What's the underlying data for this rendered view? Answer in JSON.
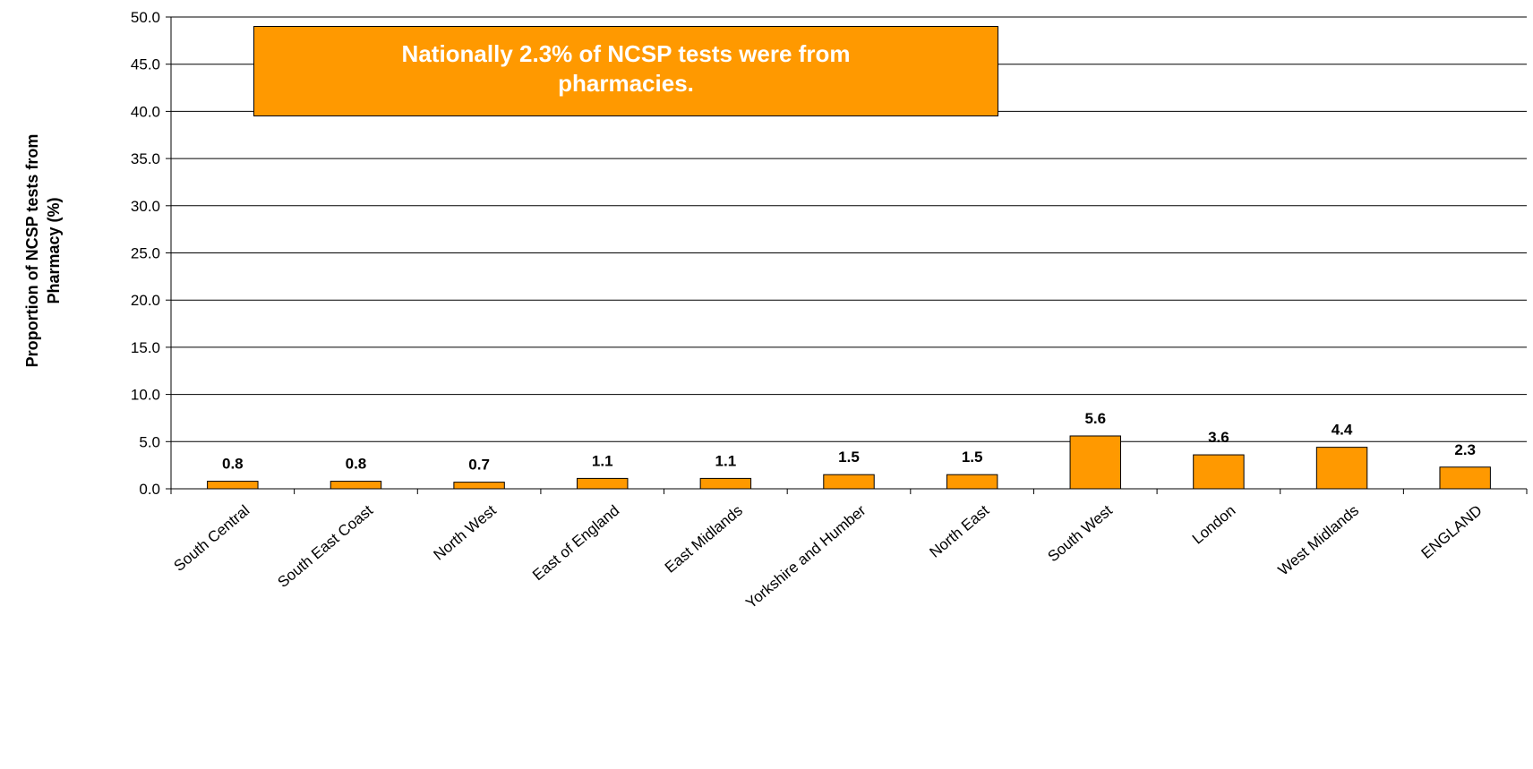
{
  "chart_data": {
    "type": "bar",
    "y_label": "Proportion of NCSP tests from Pharmacy (%)",
    "annotation": "Nationally  2.3% of NCSP tests were from pharmacies.",
    "categories": [
      "South Central",
      "South East Coast",
      "North West",
      "East of England",
      "East Midlands",
      "Yorkshire and Humber",
      "North East",
      "South West",
      "London",
      "West Midlands",
      "ENGLAND"
    ],
    "values": [
      0.8,
      0.8,
      0.7,
      1.1,
      1.1,
      1.5,
      1.5,
      5.6,
      3.6,
      4.4,
      2.3
    ],
    "color": "#ff9900",
    "ylim": [
      0,
      50
    ],
    "yticks": [
      {
        "value": 0,
        "label": "0.0"
      },
      {
        "value": 5,
        "label": "5.0"
      },
      {
        "value": 10,
        "label": "10.0"
      },
      {
        "value": 15,
        "label": "15.0"
      },
      {
        "value": 20,
        "label": "20.0"
      },
      {
        "value": 25,
        "label": "25.0"
      },
      {
        "value": 30,
        "label": "30.0"
      },
      {
        "value": 35,
        "label": "35.0"
      },
      {
        "value": 40,
        "label": "40.0"
      },
      {
        "value": 45,
        "label": "45.0"
      },
      {
        "value": 50,
        "label": "50.0"
      }
    ],
    "grid": true
  }
}
